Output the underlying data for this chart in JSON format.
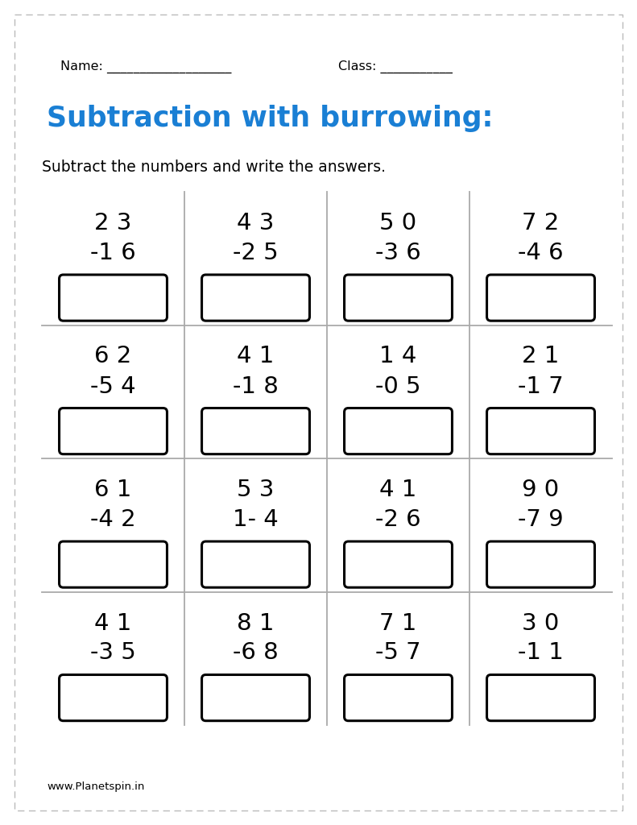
{
  "title": "Subtraction with burrowing:",
  "subtitle": "Subtract the numbers and write the answers.",
  "name_label": "Name: ___________________",
  "class_label": "Class: ___________",
  "footer": "www.Planetspin.in",
  "title_color": "#1a7fd4",
  "problems": [
    [
      "2 3",
      "-1 6"
    ],
    [
      "4 3",
      "-2 5"
    ],
    [
      "5 0",
      "-3 6"
    ],
    [
      "7 2",
      "-4 6"
    ],
    [
      "6 2",
      "-5 4"
    ],
    [
      "4 1",
      "-1 8"
    ],
    [
      "1 4",
      "-0 5"
    ],
    [
      "2 1",
      "-1 7"
    ],
    [
      "6 1",
      "-4 2"
    ],
    [
      "5 3",
      "1- 4"
    ],
    [
      "4 1",
      "-2 6"
    ],
    [
      "9 0",
      "-7 9"
    ],
    [
      "4 1",
      "-3 5"
    ],
    [
      "8 1",
      "-6 8"
    ],
    [
      "7 1",
      "-5 7"
    ],
    [
      "3 0",
      "-1 1"
    ]
  ],
  "grid_rows": 4,
  "grid_cols": 4,
  "bg_color": "#ffffff",
  "line_color": "#aaaaaa",
  "box_color": "#000000",
  "text_color": "#000000"
}
